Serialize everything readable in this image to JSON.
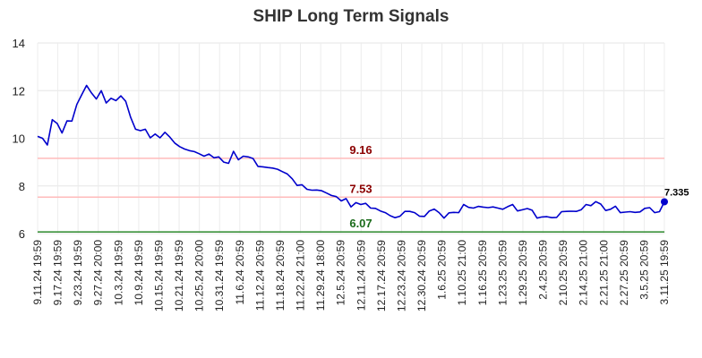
{
  "chart_data": {
    "type": "line",
    "title": "SHIP Long Term Signals",
    "ylim": [
      6,
      14
    ],
    "yticks": [
      6,
      8,
      10,
      12,
      14
    ],
    "grid": true,
    "x_tick_labels": [
      "9.11.24 19:59",
      "9.17.24 19:59",
      "9.23.24 19:59",
      "9.27.24 20:00",
      "10.3.24 19:59",
      "10.9.24 19:59",
      "10.15.24 19:59",
      "10.21.24 19:59",
      "10.25.24 20:00",
      "10.31.24 19:59",
      "11.6.24 20:59",
      "11.12.24 20:59",
      "11.18.24 20:59",
      "11.22.24 21:00",
      "11.29.24 18:00",
      "12.5.24 20:59",
      "12.11.24 20:59",
      "12.17.24 20:59",
      "12.23.24 20:59",
      "12.30.24 20:59",
      "1.6.25 20:59",
      "1.10.25 21:00",
      "1.16.25 20:59",
      "1.23.25 20:59",
      "1.29.25 20:59",
      "2.4.25 20:59",
      "2.10.25 20:59",
      "2.14.25 21:00",
      "2.21.25 21:00",
      "2.27.25 20:59",
      "3.5.25 20:59",
      "3.11.25 19:59"
    ],
    "series": [
      {
        "color": "#0000cc",
        "values": [
          10.08,
          10.0,
          9.72,
          10.78,
          10.62,
          10.22,
          10.73,
          10.72,
          11.42,
          11.82,
          12.22,
          11.9,
          11.65,
          12.0,
          11.48,
          11.68,
          11.58,
          11.78,
          11.55,
          10.88,
          10.38,
          10.32,
          10.38,
          10.02,
          10.18,
          10.02,
          10.25,
          10.05,
          9.8,
          9.65,
          9.55,
          9.48,
          9.44,
          9.35,
          9.25,
          9.34,
          9.18,
          9.22,
          9.0,
          8.95,
          9.45,
          9.1,
          9.25,
          9.22,
          9.15,
          8.82,
          8.8,
          8.77,
          8.75,
          8.7,
          8.6,
          8.5,
          8.3,
          8.02,
          8.05,
          7.86,
          7.82,
          7.83,
          7.8,
          7.7,
          7.6,
          7.55,
          7.37,
          7.47,
          7.12,
          7.3,
          7.22,
          7.27,
          7.07,
          7.06,
          6.95,
          6.88,
          6.75,
          6.67,
          6.73,
          6.93,
          6.93,
          6.88,
          6.73,
          6.72,
          6.95,
          7.03,
          6.88,
          6.65,
          6.87,
          6.89,
          6.88,
          7.22,
          7.1,
          7.07,
          7.14,
          7.11,
          7.09,
          7.12,
          7.07,
          7.02,
          7.13,
          7.22,
          6.95,
          7.0,
          7.05,
          6.98,
          6.65,
          6.7,
          6.71,
          6.67,
          6.68,
          6.92,
          6.93,
          6.94,
          6.93,
          7.0,
          7.22,
          7.17,
          7.34,
          7.24,
          6.97,
          7.02,
          7.15,
          6.88,
          6.9,
          6.92,
          6.89,
          6.91,
          7.06,
          7.09,
          6.88,
          6.92,
          7.335
        ]
      }
    ],
    "levels": [
      {
        "value": 9.16,
        "label": "9.16",
        "line_color": "#ffbbbb",
        "text_color": "#8b0000"
      },
      {
        "value": 7.53,
        "label": "7.53",
        "line_color": "#ffbbbb",
        "text_color": "#8b0000"
      },
      {
        "value": 6.07,
        "label": "6.07",
        "line_color": "#2e8b2e",
        "text_color": "#1a6b1a"
      }
    ],
    "last_point": {
      "value": 7.335,
      "label": "7.335"
    }
  }
}
